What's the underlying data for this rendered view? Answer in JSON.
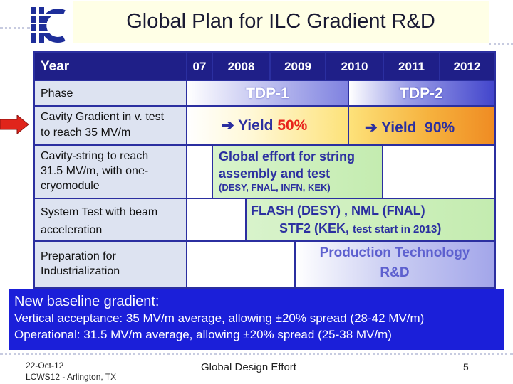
{
  "header": {
    "logo_text": "ilc",
    "title": "Global Plan for ILC Gradient R&D"
  },
  "table": {
    "year_label": "Year",
    "years": [
      "07",
      "2008",
      "2009",
      "2010",
      "2011",
      "2012"
    ],
    "rows": {
      "phase": {
        "label": "Phase",
        "tdp1": "TDP-1",
        "tdp2": "TDP-2"
      },
      "cavity": {
        "label_line1": "Cavity Gradient in v. test",
        "label_line2": "to reach 35 MV/m",
        "arrow": "➔",
        "yield_word": "Yield",
        "yield1_value": "50%",
        "yield2_value": "90%"
      },
      "string": {
        "label_line1": "Cavity-string  to reach",
        "label_line2": "31.5 MV/m, with one-",
        "label_line3": "cryomodule",
        "text_line1": "Global effort for string",
        "text_line2": "assembly and test",
        "labs": "(DESY, FNAL, INFN, KEK)"
      },
      "system": {
        "label_line1": "System Test with beam",
        "label_line2": "acceleration",
        "text_line1": "FLASH (DESY) , NML (FNAL)",
        "text_line2_a": "STF2 (KEK, ",
        "text_line2_b": "test start in 2013",
        "text_line2_c": ")"
      },
      "industrial": {
        "label_line1": "Preparation for",
        "label_line2": "Industrialization",
        "text_line1": "Production Technology",
        "text_line2": "R&D"
      }
    }
  },
  "baseline": {
    "heading": "New baseline gradient:",
    "line1": "Vertical acceptance: 35 MV/m average, allowing ±20% spread (28-42 MV/m)",
    "line2": "Operational: 31.5 MV/m average, allowing ±20% spread (25-38 MV/m)"
  },
  "footer": {
    "date": "22-Oct-12",
    "event": "LCWS12 - Arlington, TX",
    "center": "Global Design Effort",
    "page": "5"
  },
  "colors": {
    "table_header": "#1f1f88",
    "table_border": "#2b2fa0",
    "label_bg": "#dde3f1",
    "baseline_bg": "#1b1fd9",
    "accent_red": "#e8231c",
    "green_cell": "#c4ecb0"
  }
}
